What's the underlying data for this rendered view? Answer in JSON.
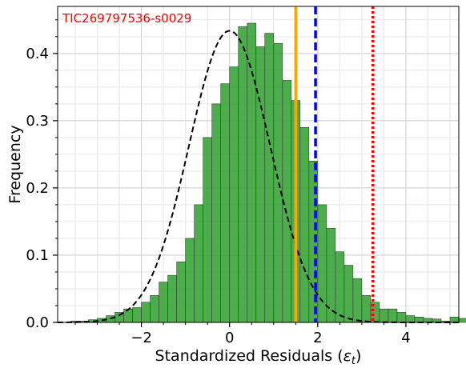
{
  "chart_data": {
    "type": "bar",
    "annotation": "TIC269797536-s0029",
    "xlabel": "Standardized Residuals (",
    "xlabel_symbol": "ε",
    "xlabel_sub": "t",
    "xlabel_close": ")",
    "ylabel": "Frequency",
    "xlim": [
      -3.9,
      5.2
    ],
    "ylim": [
      0,
      0.47
    ],
    "xticks": [
      -2,
      0,
      2,
      4
    ],
    "xtick_labels": [
      "−2",
      "0",
      "2",
      "4"
    ],
    "yticks": [
      0.0,
      0.1,
      0.2,
      0.3,
      0.4
    ],
    "ytick_labels": [
      "0.0",
      "0.1",
      "0.2",
      "0.3",
      "0.4"
    ],
    "grid": true,
    "bins": {
      "start": -3.6,
      "width": 0.2,
      "values": [
        0.002,
        0.002,
        0.004,
        0.006,
        0.01,
        0.015,
        0.02,
        0.022,
        0.03,
        0.04,
        0.06,
        0.07,
        0.09,
        0.125,
        0.175,
        0.275,
        0.325,
        0.355,
        0.38,
        0.44,
        0.445,
        0.41,
        0.43,
        0.415,
        0.36,
        0.33,
        0.29,
        0.24,
        0.175,
        0.14,
        0.105,
        0.085,
        0.065,
        0.04,
        0.03,
        0.02,
        0.02,
        0.015,
        0.01,
        0.008,
        0.006,
        0.005,
        0.002,
        0.008,
        0.006,
        0.002,
        0.0,
        0.0,
        0.0,
        0.0,
        0.0,
        0.006,
        0.002,
        0.0,
        0.0,
        0.015
      ],
      "color": "#2ca02c"
    },
    "fit_curve": {
      "type": "normal",
      "mean": 0.0,
      "std": 0.92,
      "color": "#000000",
      "style": "dashed"
    },
    "vlines": [
      {
        "x": 1.5,
        "color": "#ffa500",
        "style": "solid"
      },
      {
        "x": 1.95,
        "color": "#0000ff",
        "style": "dashed"
      },
      {
        "x": 3.25,
        "color": "#ff0000",
        "style": "dotted"
      }
    ]
  }
}
